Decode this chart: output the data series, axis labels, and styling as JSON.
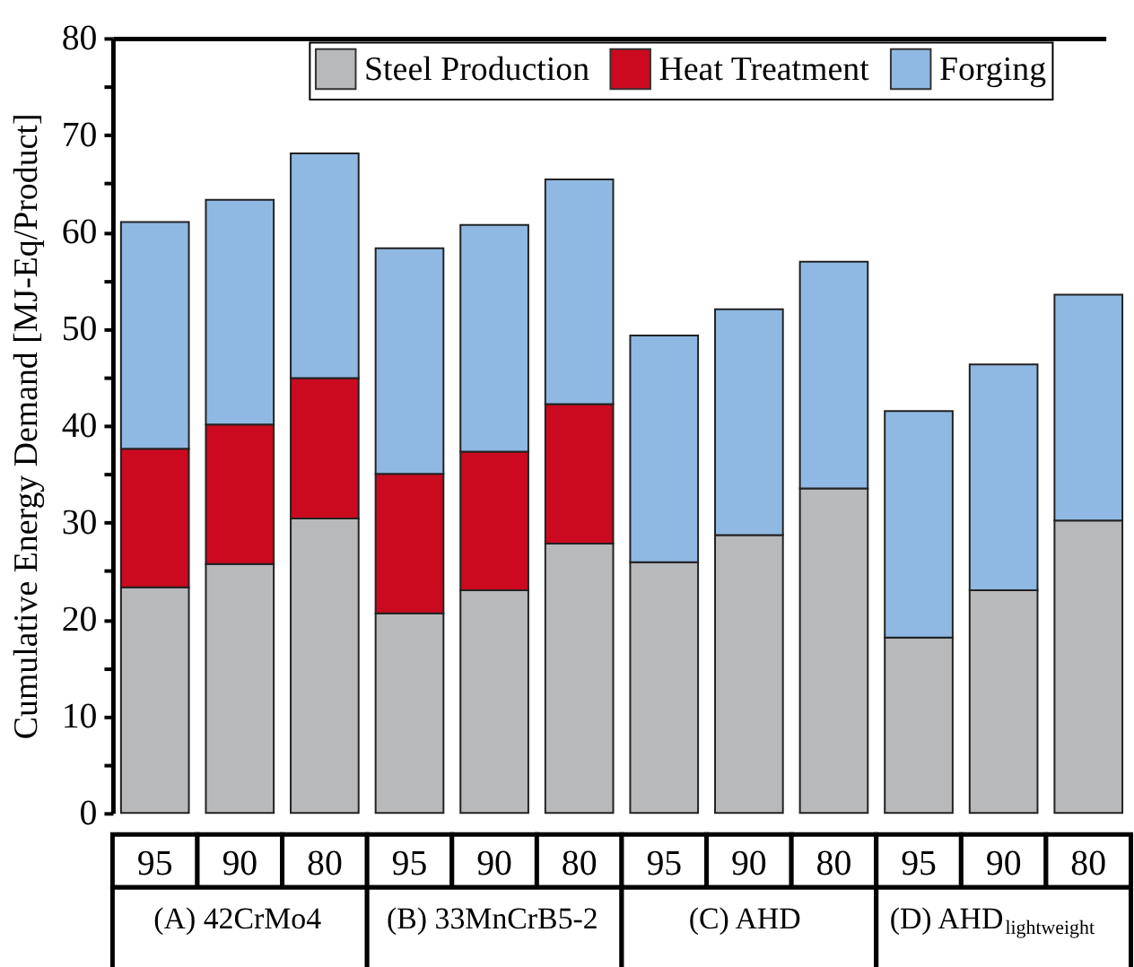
{
  "chart_data": {
    "type": "bar",
    "stacked": true,
    "ylabel": "Cumulative Energy Demand [MJ-Eq/Product]",
    "categories": [
      "95",
      "90",
      "80",
      "95",
      "90",
      "80",
      "95",
      "90",
      "80",
      "95",
      "90",
      "80"
    ],
    "annotations": [
      "(A) 42CrMo4",
      "(B) 33MnCrB5-2",
      "(C) AHD",
      "(D) AHD$_{lightweight}$"
    ],
    "series": [
      {
        "name": "Steel Production",
        "color": "#b8b9bb",
        "values": [
          23.3,
          25.7,
          30.4,
          20.6,
          23.0,
          27.8,
          25.9,
          28.7,
          33.5,
          18.1,
          23.0,
          30.2
        ]
      },
      {
        "name": "Heat Treatment",
        "color": "#cc0a1f",
        "values": [
          14.3,
          14.4,
          14.5,
          14.4,
          14.3,
          14.4,
          null,
          null,
          null,
          null,
          null,
          null
        ]
      },
      {
        "name": "Forging",
        "color": "#8fb9e3",
        "values": [
          23.4,
          23.2,
          23.2,
          23.3,
          23.4,
          23.2,
          23.4,
          23.3,
          23.4,
          23.4,
          23.3,
          23.3
        ]
      }
    ],
    "ylim": [
      0,
      80
    ],
    "yticks": [
      0,
      {
        "value": 5,
        "label": null
      },
      10,
      {
        "value": 15,
        "label": null
      },
      20,
      {
        "value": 25,
        "label": null
      },
      30,
      {
        "value": 35,
        "label": null
      },
      40,
      {
        "value": 45,
        "label": null
      },
      50,
      {
        "value": 55,
        "label": null
      },
      60,
      {
        "value": 65,
        "label": null
      },
      70,
      {
        "value": 75,
        "label": null
      },
      80
    ],
    "grid": false,
    "legend": "top"
  }
}
